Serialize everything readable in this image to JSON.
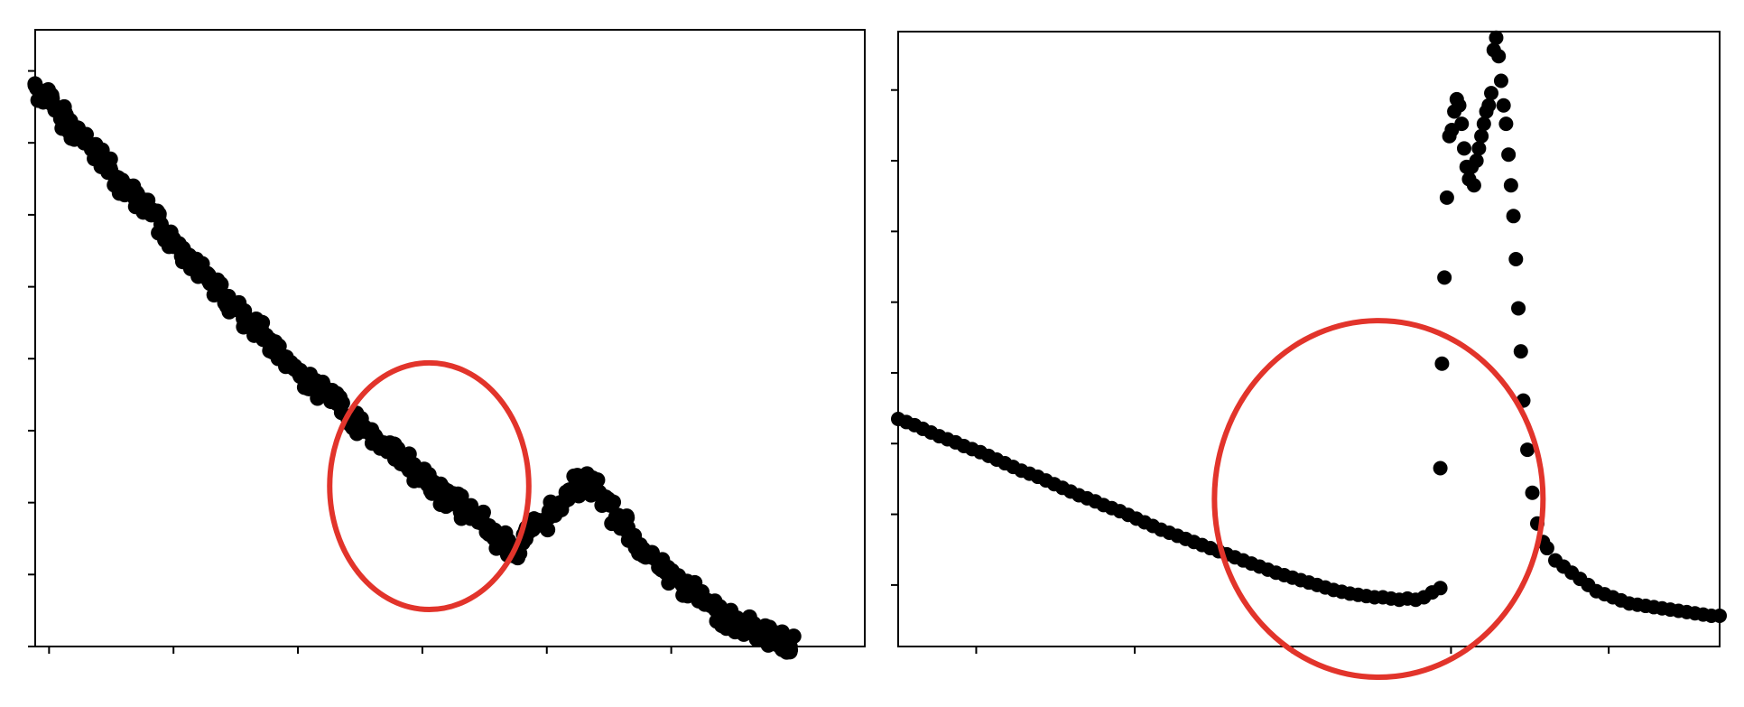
{
  "figure": {
    "background": "#ffffff",
    "axis_color": "#000000",
    "marker_color": "#000000",
    "highlight_color": "#e2342b"
  },
  "chart_data": [
    {
      "type": "scatter",
      "panel": "left",
      "title": "",
      "xlabel": "",
      "ylabel": "",
      "xlim": [
        0,
        1
      ],
      "ylim": [
        0,
        1
      ],
      "x_tick_values": [
        0.0167,
        0.1667,
        0.3167,
        0.4667,
        0.6167,
        0.7667,
        0.9167
      ],
      "y_tick_values": [
        0.0,
        0.1167,
        0.2333,
        0.35,
        0.4667,
        0.5833,
        0.7,
        0.8167,
        0.9333
      ],
      "grid": false,
      "legend": "none",
      "series": [
        {
          "x": [
            0.0,
            0.02,
            0.04,
            0.06,
            0.08,
            0.1,
            0.12,
            0.14,
            0.16,
            0.18,
            0.2,
            0.22,
            0.24,
            0.26,
            0.28,
            0.3,
            0.32,
            0.34,
            0.36,
            0.38,
            0.4,
            0.42,
            0.44,
            0.46,
            0.48,
            0.5,
            0.52,
            0.54,
            0.56,
            0.58,
            0.6,
            0.62,
            0.64,
            0.66,
            0.68,
            0.7,
            0.72,
            0.74,
            0.76,
            0.78,
            0.8,
            0.82,
            0.84,
            0.86,
            0.88,
            0.9,
            0.91
          ],
          "y": [
            0.91,
            0.88,
            0.85,
            0.82,
            0.79,
            0.76,
            0.73,
            0.7,
            0.67,
            0.64,
            0.61,
            0.58,
            0.55,
            0.52,
            0.5,
            0.47,
            0.44,
            0.42,
            0.4,
            0.37,
            0.35,
            0.33,
            0.31,
            0.28,
            0.26,
            0.24,
            0.22,
            0.2,
            0.17,
            0.15,
            0.19,
            0.21,
            0.25,
            0.27,
            0.25,
            0.21,
            0.18,
            0.15,
            0.12,
            0.1,
            0.08,
            0.06,
            0.04,
            0.03,
            0.02,
            0.01,
            0.0
          ]
        }
      ],
      "annotations": [
        {
          "type": "ellipse",
          "cx": 0.475,
          "cy": 0.26,
          "rx": 0.12,
          "ry": 0.2,
          "color": "#e2342b"
        }
      ]
    },
    {
      "type": "scatter",
      "panel": "right",
      "title": "",
      "xlabel": "",
      "ylabel": "",
      "xlim": [
        0,
        1
      ],
      "ylim": [
        0,
        1
      ],
      "x_tick_values": [
        0.095,
        0.288,
        0.48,
        0.673,
        0.865
      ],
      "y_tick_values": [
        0.1,
        0.215,
        0.33,
        0.445,
        0.56,
        0.675,
        0.79,
        0.905
      ],
      "grid": false,
      "legend": "none",
      "series": [
        {
          "x": [
            0.0,
            0.01,
            0.02,
            0.03,
            0.04,
            0.05,
            0.06,
            0.07,
            0.08,
            0.09,
            0.1,
            0.11,
            0.12,
            0.13,
            0.14,
            0.15,
            0.16,
            0.17,
            0.18,
            0.19,
            0.2,
            0.21,
            0.22,
            0.23,
            0.24,
            0.25,
            0.26,
            0.27,
            0.28,
            0.29,
            0.3,
            0.31,
            0.32,
            0.33,
            0.34,
            0.35,
            0.36,
            0.37,
            0.38,
            0.39,
            0.4,
            0.41,
            0.42,
            0.43,
            0.44,
            0.45,
            0.46,
            0.47,
            0.48,
            0.49,
            0.5,
            0.51,
            0.52,
            0.53,
            0.54,
            0.55,
            0.56,
            0.57,
            0.58,
            0.59,
            0.6,
            0.61,
            0.62,
            0.63,
            0.64,
            0.65,
            0.66,
            0.66,
            0.662,
            0.665,
            0.668,
            0.671,
            0.674,
            0.677,
            0.68,
            0.683,
            0.686,
            0.689,
            0.692,
            0.695,
            0.698,
            0.701,
            0.704,
            0.707,
            0.71,
            0.713,
            0.716,
            0.719,
            0.722,
            0.725,
            0.728,
            0.731,
            0.734,
            0.737,
            0.74,
            0.743,
            0.746,
            0.749,
            0.752,
            0.755,
            0.758,
            0.761,
            0.766,
            0.772,
            0.778,
            0.785,
            0.79,
            0.8,
            0.81,
            0.82,
            0.83,
            0.84,
            0.85,
            0.86,
            0.87,
            0.88,
            0.89,
            0.9,
            0.91,
            0.92,
            0.93,
            0.94,
            0.95,
            0.96,
            0.97,
            0.98,
            0.99,
            1.0
          ],
          "y": [
            0.37,
            0.365,
            0.36,
            0.354,
            0.348,
            0.342,
            0.337,
            0.332,
            0.326,
            0.321,
            0.316,
            0.31,
            0.304,
            0.298,
            0.292,
            0.286,
            0.281,
            0.276,
            0.27,
            0.264,
            0.258,
            0.252,
            0.246,
            0.241,
            0.236,
            0.23,
            0.225,
            0.22,
            0.214,
            0.208,
            0.202,
            0.196,
            0.19,
            0.185,
            0.18,
            0.175,
            0.17,
            0.165,
            0.16,
            0.155,
            0.15,
            0.145,
            0.14,
            0.135,
            0.13,
            0.125,
            0.12,
            0.116,
            0.112,
            0.108,
            0.104,
            0.1,
            0.096,
            0.092,
            0.089,
            0.086,
            0.084,
            0.082,
            0.08,
            0.08,
            0.078,
            0.076,
            0.078,
            0.076,
            0.08,
            0.088,
            0.095,
            0.29,
            0.46,
            0.6,
            0.73,
            0.83,
            0.84,
            0.87,
            0.89,
            0.88,
            0.85,
            0.81,
            0.78,
            0.76,
            0.78,
            0.75,
            0.79,
            0.81,
            0.83,
            0.85,
            0.87,
            0.88,
            0.9,
            0.97,
            0.99,
            0.96,
            0.92,
            0.88,
            0.85,
            0.8,
            0.75,
            0.7,
            0.63,
            0.55,
            0.48,
            0.4,
            0.32,
            0.25,
            0.2,
            0.17,
            0.16,
            0.14,
            0.13,
            0.12,
            0.11,
            0.1,
            0.09,
            0.085,
            0.08,
            0.075,
            0.07,
            0.068,
            0.066,
            0.064,
            0.062,
            0.06,
            0.058,
            0.056,
            0.054,
            0.052,
            0.05,
            0.05
          ]
        }
      ],
      "annotations": [
        {
          "type": "ellipse",
          "cx": 0.585,
          "cy": 0.24,
          "rx": 0.2,
          "ry": 0.29,
          "color": "#e2342b"
        }
      ]
    }
  ]
}
